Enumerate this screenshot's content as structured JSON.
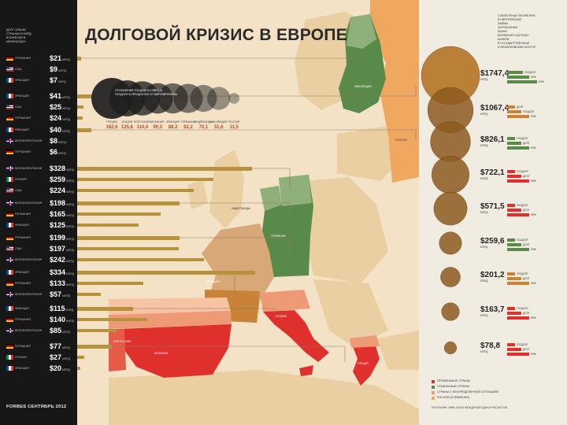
{
  "title": "ДОЛГОВОЙ КРИЗИС В ЕВРОПЕ",
  "sidebar_notes": [
    "ДОЛГ ЧУЖЫМ",
    "СТРАНАМ В МЛРД",
    "ВЛОЖЕНИЯ В",
    "МИЛЛИАРДАХ"
  ],
  "footer": "FORBES СЕНТЯБРЬ 2012",
  "bubble_note": [
    "ОТНОШЕНИЕ ГОСДОЛГА К ВВП, %",
    "ГОСДОЛГ В ПРОЦЕНТАХ ОТ ВВП ЕВРОЗОНЫ"
  ],
  "colors": {
    "sidebar": "#171717",
    "land": "#f3e2c6",
    "sea": "#f3e2c6",
    "bar": "#b6913e",
    "problem": "#e0302e",
    "stable": "#5a8a4a",
    "uncertain": "#ee9a76",
    "russia": "#f0a860",
    "creditor_circle": "#8c5a1e",
    "creditor_large": "#b77a2e"
  },
  "chart_data": [
    {
      "type": "bar",
      "title": "",
      "groups": [
        {
          "rows": [
            {
              "country": "ГЕРМАНИЯ",
              "amount": "$21",
              "unit": "МЛРД",
              "value": 21
            },
            {
              "country": "США",
              "amount": "$9",
              "unit": "МЛРД",
              "value": 9
            },
            {
              "country": "ФРАНЦИЯ",
              "amount": "$7",
              "unit": "МЛРД",
              "value": 7
            }
          ]
        },
        {
          "rows": [
            {
              "country": "ФРАНЦИЯ",
              "amount": "$41",
              "unit": "МЛРД",
              "value": 41
            },
            {
              "country": "США",
              "amount": "$25",
              "unit": "МЛРД",
              "value": 25
            },
            {
              "country": "ГЕРМАНИЯ",
              "amount": "$24",
              "unit": "МЛРД",
              "value": 24
            }
          ]
        },
        {
          "rows": [
            {
              "country": "ФРАНЦИЯ",
              "amount": "$40",
              "unit": "МЛРД",
              "value": 40
            },
            {
              "country": "ВЕЛИКОБРИТАНИЯ",
              "amount": "$8",
              "unit": "МЛРД",
              "value": 8
            },
            {
              "country": "ГЕРМАНИЯ",
              "amount": "$6",
              "unit": "МЛРД",
              "value": 6
            }
          ]
        },
        {
          "rows": [
            {
              "country": "ВЕЛИКОБРИТАНИЯ",
              "amount": "$328",
              "unit": "МЛРД",
              "value": 328
            },
            {
              "country": "ИТАЛИЯ",
              "amount": "$259",
              "unit": "МЛРД",
              "value": 259
            },
            {
              "country": "США",
              "amount": "$224",
              "unit": "МЛРД",
              "value": 224
            }
          ]
        },
        {
          "rows": [
            {
              "country": "ВЕЛИКОБРИТАНИЯ",
              "amount": "$198",
              "unit": "МЛРД",
              "value": 198
            },
            {
              "country": "ГЕРМАНИЯ",
              "amount": "$165",
              "unit": "МЛРД",
              "value": 165
            },
            {
              "country": "ФРАНЦИЯ",
              "amount": "$125",
              "unit": "МЛРД",
              "value": 125
            }
          ]
        },
        {
          "rows": [
            {
              "country": "ГЕРМАНИЯ",
              "amount": "$199",
              "unit": "МЛРД",
              "value": 199
            },
            {
              "country": "США",
              "amount": "$197",
              "unit": "МЛРД",
              "value": 197
            },
            {
              "country": "ВЕЛИКОБРИТАНИЯ",
              "amount": "$242",
              "unit": "МЛРД",
              "value": 242
            }
          ]
        },
        {
          "rows": [
            {
              "country": "ФРАНЦИЯ",
              "amount": "$334",
              "unit": "МЛРД",
              "value": 334
            },
            {
              "country": "ГЕРМАНИЯ",
              "amount": "$133",
              "unit": "МЛРД",
              "value": 133
            },
            {
              "country": "ВЕЛИКОБРИТАНИЯ",
              "amount": "$57",
              "unit": "МЛРД",
              "value": 57
            }
          ]
        },
        {
          "rows": [
            {
              "country": "ФРАНЦИЯ",
              "amount": "$115",
              "unit": "МЛРД",
              "value": 115
            },
            {
              "country": "ГЕРМАНИЯ",
              "amount": "$140",
              "unit": "МЛРД",
              "value": 140
            },
            {
              "country": "ВЕЛИКОБРИТАНИЯ",
              "amount": "$85",
              "unit": "МЛРД",
              "value": 85
            }
          ]
        },
        {
          "rows": [
            {
              "country": "ГЕРМАНИЯ",
              "amount": "$77",
              "unit": "МЛРД",
              "value": 77
            },
            {
              "country": "ИТАЛИЯ",
              "amount": "$27",
              "unit": "МЛРД",
              "value": 27
            },
            {
              "country": "ФРАНЦИЯ",
              "amount": "$20",
              "unit": "МЛРД",
              "value": 20
            }
          ]
        }
      ]
    },
    {
      "type": "scatter",
      "title": "",
      "categories": [
        "ГРЕЦИЯ",
        "ИТАЛИЯ",
        "ПОРТУГАЛИЯ",
        "ИСПАНИЯ",
        "ФРАНЦИЯ",
        "ГЕРМАНИЯ",
        "НИДЕРЛАНДЫ",
        "ФИНЛЯНДИЯ",
        "РОССИЯ"
      ],
      "values": [
        162.6,
        125.8,
        114.4,
        90.3,
        88.2,
        82.2,
        70.1,
        51.6,
        11.5
      ],
      "value_labels": [
        "162,6",
        "125,8",
        "114,4",
        "90,3",
        "88,2",
        "82,2",
        "70,1",
        "51,6",
        "11,5"
      ]
    },
    {
      "type": "scatter",
      "title": "",
      "notes": [
        "СОВОКУПНЫЕ ВЛОЖЕНИЯ",
        "В ЕВРОПЕЙСКИЕ",
        "ЗАЙМЫ",
        "ЗАРУБЕЖНЫЕ",
        "БАНКИ",
        "",
        "ВЛОЖЕНИЯ ЧАСТНЫХ",
        "БАНКОВ",
        "В ГОСУДАРСТВЕННЫЙ",
        "И НЕБАНКОВСКИЙ СЕКТОР"
      ],
      "unit": "МЛРД",
      "creditors": [
        {
          "amount": "$1747,4",
          "value": 1747.4,
          "sectors": [
            "ГОСДОЛГ",
            "НФК",
            "НФК"
          ]
        },
        {
          "amount": "$1067,4",
          "value": 1067.4,
          "sectors": [
            "ДОЛГ",
            "ГОСДОЛГ",
            "НФК"
          ]
        },
        {
          "amount": "$826,1",
          "value": 826.1,
          "sectors": [
            "ГОСДОЛГ",
            "ДОЛГ",
            "НФК"
          ]
        },
        {
          "amount": "$722,1",
          "value": 722.1,
          "sectors": [
            "ГОСДОЛГ",
            "ДОЛГ",
            "НФК"
          ]
        },
        {
          "amount": "$571,5",
          "value": 571.5,
          "sectors": [
            "ГОСДОЛГ",
            "ДОЛГ",
            "НФК"
          ]
        },
        {
          "amount": "$259,6",
          "value": 259.6,
          "sectors": [
            "ГОСДОЛГ",
            "ДОЛГ",
            "НФК"
          ]
        },
        {
          "amount": "$201,2",
          "value": 201.2,
          "sectors": [
            "ГОСДОЛГ",
            "ДОЛГ",
            "НФК"
          ]
        },
        {
          "amount": "$163,7",
          "value": 163.7,
          "sectors": [
            "ГОСДОЛГ",
            "ДОЛГ",
            "НФК"
          ]
        },
        {
          "amount": "$78,8",
          "value": 78.8,
          "sectors": [
            "ГОСДОЛГ",
            "ДОЛГ",
            "НФК"
          ]
        }
      ]
    }
  ],
  "map_labels": [
    "ФИНЛЯНДИЯ",
    "РОССИЯ",
    "НИДЕРЛАНДЫ",
    "ГЕРМАНИЯ",
    "ФРАНЦИЯ",
    "ИТАЛИЯ",
    "ПОРТУГАЛИЯ",
    "ИСПАНИЯ",
    "ГРЕЦИЯ"
  ],
  "legend": [
    {
      "label": "ПРОБЛЕМНЫЕ СТРАНЫ",
      "color": "#e0302e"
    },
    {
      "label": "СТАБИЛЬНЫЕ СТРАНЫ",
      "color": "#5a8a4a"
    },
    {
      "label": "СТРАНЫ С НЕОПРЕДЕЛЕННОЙ СИТУАЦИЕЙ",
      "color": "#ee9a76"
    },
    {
      "label": "РОССИЯ (СПРАВОЧНО)",
      "color": "#f0a860"
    }
  ],
  "source": "ИСТОЧНИК: МВФ, БАНК МЕЖДУНАРОДНЫХ РАСЧЕТОВ"
}
